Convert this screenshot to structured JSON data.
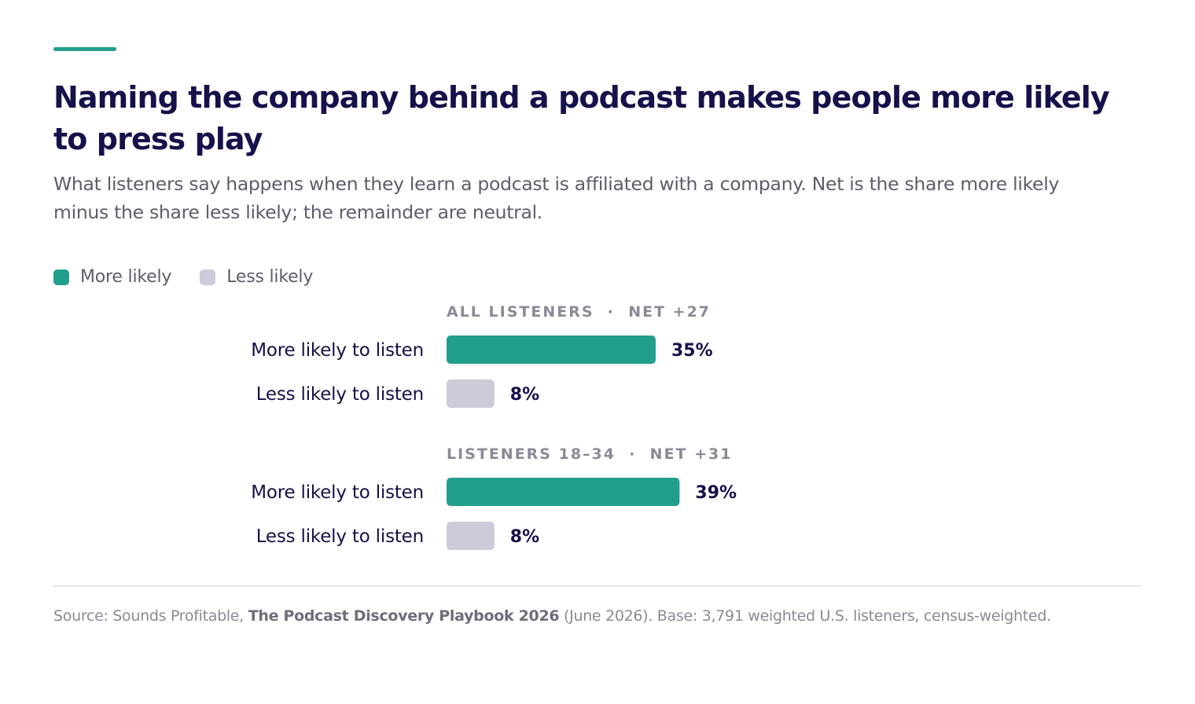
{
  "title": "Naming the company behind a podcast makes people more likely to press play",
  "subtitle": "What listeners say happens when they learn a podcast is affiliated with a company. Net is the share more likely minus the share less likely; the remainder are neutral.",
  "colors": {
    "more": "#229e8c",
    "less": "#cbcbd9",
    "accent": "#229e8c",
    "text": "#15114a"
  },
  "legend": [
    {
      "label": "More likely",
      "color": "#229e8c"
    },
    {
      "label": "Less likely",
      "color": "#cbcbd9"
    }
  ],
  "chart_data": {
    "type": "bar",
    "orientation": "horizontal",
    "unit": "%",
    "legend_position": "top-left",
    "grid": false,
    "groups": [
      {
        "label": "ALL LISTENERS  ·  NET +27",
        "bars": [
          {
            "category": "More likely to listen",
            "series": "More likely",
            "value": 35,
            "label": "35%"
          },
          {
            "category": "Less likely to listen",
            "series": "Less likely",
            "value": 8,
            "label": "8%"
          }
        ]
      },
      {
        "label": "LISTENERS 18–34  ·  NET +31",
        "bars": [
          {
            "category": "More likely to listen",
            "series": "More likely",
            "value": 39,
            "label": "39%"
          },
          {
            "category": "Less likely to listen",
            "series": "Less likely",
            "value": 8,
            "label": "8%"
          }
        ]
      }
    ]
  },
  "source": {
    "prefix": "Source: Sounds Profitable, ",
    "publication": "The Podcast Discovery Playbook 2026",
    "suffix": " (June 2026). Base: 3,791 weighted U.S. listeners, census-weighted."
  }
}
